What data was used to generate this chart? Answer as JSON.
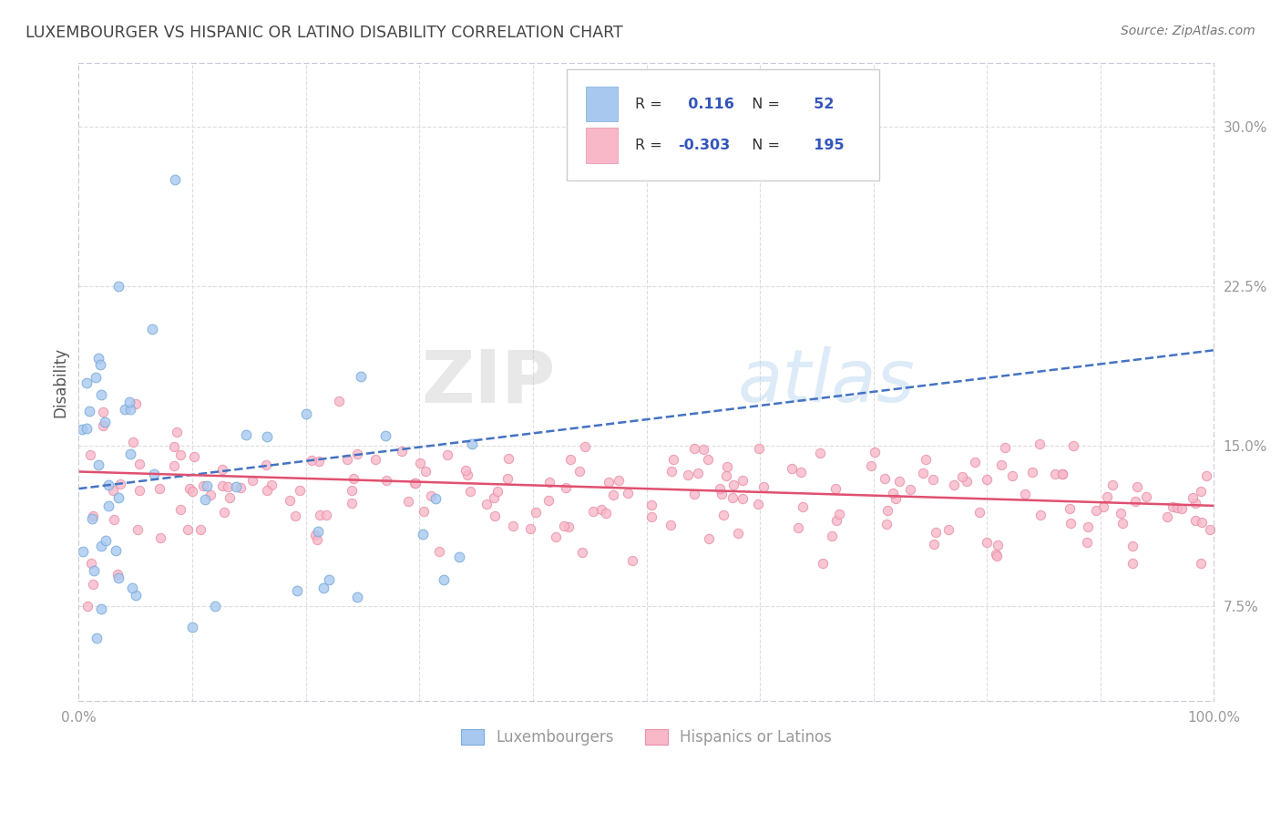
{
  "title": "LUXEMBOURGER VS HISPANIC OR LATINO DISABILITY CORRELATION CHART",
  "source_text": "Source: ZipAtlas.com",
  "ylabel": "Disability",
  "watermark_zip": "ZIP",
  "watermark_atlas": "atlas",
  "xlim": [
    0,
    100
  ],
  "ylim": [
    3,
    33
  ],
  "yticks_right": [
    7.5,
    15.0,
    22.5,
    30.0
  ],
  "yticklabels_right": [
    "7.5%",
    "15.0%",
    "22.5%",
    "30.0%"
  ],
  "blue_fill_color": "#A8C8F0",
  "blue_edge_color": "#7AAAD8",
  "pink_fill_color": "#F8B8C8",
  "pink_edge_color": "#E890A8",
  "blue_line_color": "#4472C4",
  "pink_line_color": "#E05070",
  "legend_R_blue": "0.116",
  "legend_N_blue": "52",
  "legend_R_pink": "-0.303",
  "legend_N_pink": "195",
  "legend_label_blue": "Luxembourgers",
  "legend_label_pink": "Hispanics or Latinos",
  "background_color": "#FFFFFF",
  "plot_bg_color": "#FFFFFF",
  "grid_color": "#DDDDDD",
  "border_color": "#BBBBCC",
  "title_color": "#444444",
  "axis_label_color": "#555555",
  "tick_label_color": "#999999",
  "source_color": "#777777",
  "legend_text_color": "#333333",
  "legend_value_color": "#3355BB",
  "blue_trend_start_y": 13.0,
  "blue_trend_end_y": 19.5,
  "pink_trend_start_y": 13.8,
  "pink_trend_end_y": 12.2
}
